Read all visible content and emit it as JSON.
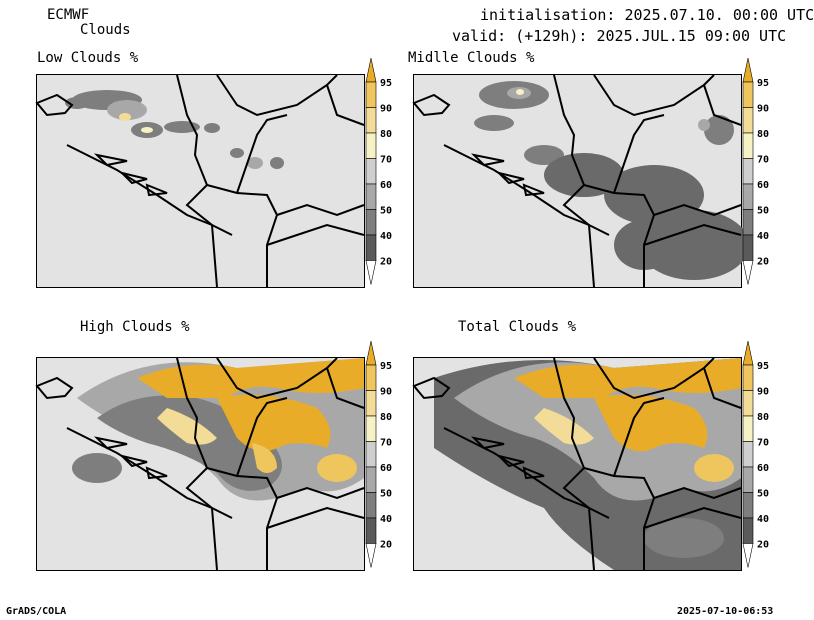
{
  "header": {
    "model": "ECMWF",
    "field": "Clouds",
    "init_line": "initialisation: 2025.07.10. 00:00 UTC",
    "valid_line": "valid: (+129h): 2025.JUL.15 09:00 UTC"
  },
  "panels": [
    {
      "title": "Low Clouds %"
    },
    {
      "title": "Midlle Clouds %"
    },
    {
      "title": "High Clouds %"
    },
    {
      "title": "Total Clouds %"
    }
  ],
  "colorbar": {
    "labels": [
      "95",
      "90",
      "80",
      "70",
      "60",
      "50",
      "40",
      "20"
    ],
    "colors": [
      "#e8ac28",
      "#efc55e",
      "#f3dc98",
      "#f7f2c4",
      "#cfcfcf",
      "#a8a8a8",
      "#7e7e7e",
      "#5a5a5a"
    ],
    "under_color": "#ffffff"
  },
  "footer": {
    "left": "GrADS/COLA",
    "right": "2025-07-10-06:53"
  }
}
